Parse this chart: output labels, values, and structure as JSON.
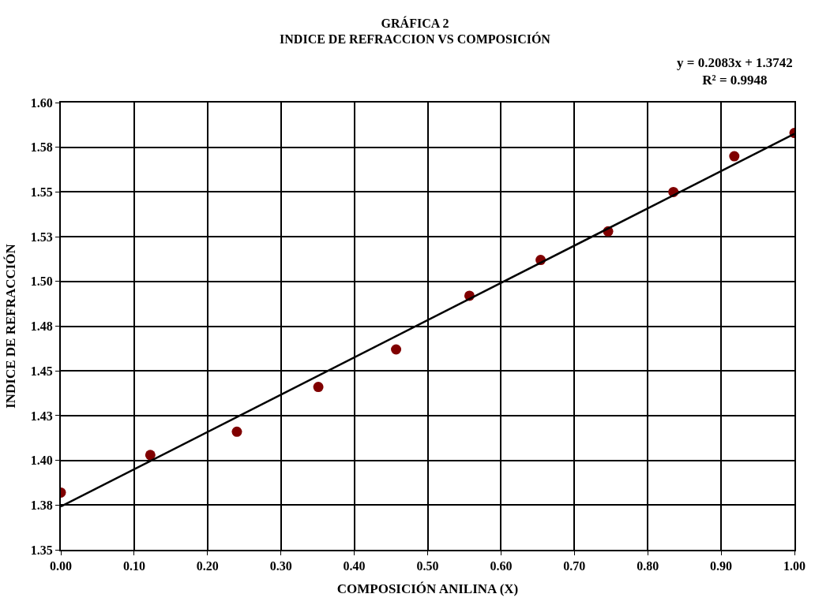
{
  "chart_data": {
    "type": "scatter",
    "title": "GRÁFICA 2",
    "subtitle": "INDICE DE REFRACCION VS COMPOSICIÓN",
    "xlabel": "COMPOSICIÓN ANILINA (X)",
    "ylabel": "INDICE DE REFRACCIÓN",
    "annotations": [
      "y = 0.2083x + 1.3742",
      "R² = 0.9948"
    ],
    "series": [
      {
        "color": "#800000",
        "marker": "circle",
        "x": [
          0.0,
          0.122,
          0.24,
          0.351,
          0.457,
          0.557,
          0.654,
          0.746,
          0.835,
          0.918,
          1.0
        ],
        "values": [
          1.382,
          1.403,
          1.416,
          1.441,
          1.462,
          1.492,
          1.512,
          1.528,
          1.55,
          1.57,
          1.583
        ]
      },
      {
        "type": "line",
        "color": "#000000",
        "marker": "none",
        "line_style": "solid",
        "x": [
          0.0,
          1.0
        ],
        "values": [
          1.3742,
          1.5825
        ]
      }
    ],
    "xlim": [
      0.0,
      1.0
    ],
    "xticks": [
      {
        "value": 0.0,
        "label": "0.00"
      },
      {
        "value": 0.1,
        "label": "0.10"
      },
      {
        "value": 0.2,
        "label": "0.20"
      },
      {
        "value": 0.3,
        "label": "0.30"
      },
      {
        "value": 0.4,
        "label": "0.40"
      },
      {
        "value": 0.5,
        "label": "0.50"
      },
      {
        "value": 0.6,
        "label": "0.60"
      },
      {
        "value": 0.7,
        "label": "0.70"
      },
      {
        "value": 0.8,
        "label": "0.80"
      },
      {
        "value": 0.9,
        "label": "0.90"
      },
      {
        "value": 1.0,
        "label": "1.00"
      }
    ],
    "ylim": [
      1.35,
      1.6
    ],
    "yticks": [
      1.35,
      {
        "value": 1.375,
        "label": "1.38"
      },
      {
        "value": 1.4,
        "label": "1.40"
      },
      {
        "value": 1.425,
        "label": "1.43"
      },
      1.45,
      {
        "value": 1.475,
        "label": "1.48"
      },
      {
        "value": 1.5,
        "label": "1.50"
      },
      {
        "value": 1.525,
        "label": "1.53"
      },
      1.55,
      {
        "value": 1.575,
        "label": "1.58"
      },
      {
        "value": 1.6,
        "label": "1.60"
      }
    ],
    "grid": true
  }
}
